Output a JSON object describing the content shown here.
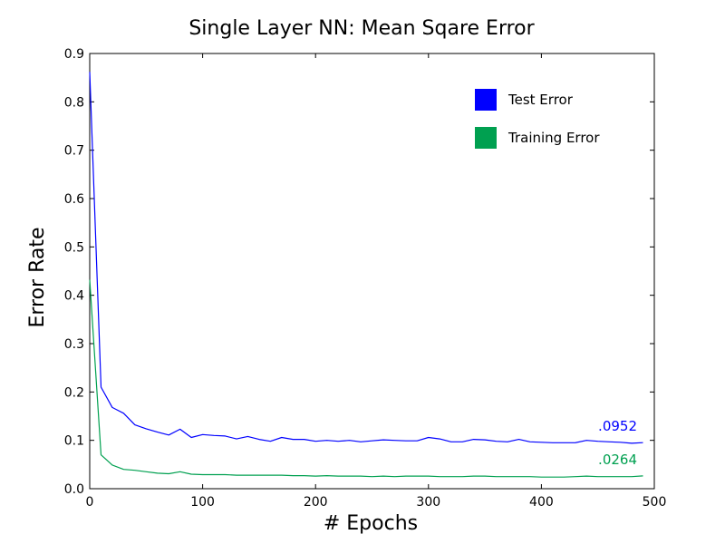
{
  "chart_data": {
    "type": "line",
    "title": "Single Layer NN: Mean Sqare Error",
    "xlabel": "# Epochs",
    "ylabel": "Error Rate",
    "xlim": [
      0,
      500
    ],
    "ylim": [
      0,
      0.9
    ],
    "xticks": [
      "0",
      "100",
      "200",
      "300",
      "400",
      "500"
    ],
    "yticks": [
      "0.0",
      "0.1",
      "0.2",
      "0.3",
      "0.4",
      "0.5",
      "0.6",
      "0.7",
      "0.8",
      "0.9"
    ],
    "grid": false,
    "legend_position": "top-right",
    "series": [
      {
        "name": "Test Error",
        "color": "#0000ff",
        "x": [
          0,
          10,
          20,
          30,
          40,
          50,
          60,
          70,
          80,
          90,
          100,
          110,
          120,
          130,
          140,
          150,
          160,
          170,
          180,
          190,
          200,
          210,
          220,
          230,
          240,
          250,
          260,
          270,
          280,
          290,
          300,
          310,
          320,
          330,
          340,
          350,
          360,
          370,
          380,
          390,
          400,
          410,
          420,
          430,
          440,
          450,
          460,
          470,
          480,
          490
        ],
        "values": [
          0.862,
          0.21,
          0.168,
          0.156,
          0.132,
          0.124,
          0.117,
          0.111,
          0.123,
          0.106,
          0.112,
          0.11,
          0.109,
          0.103,
          0.108,
          0.102,
          0.098,
          0.106,
          0.102,
          0.102,
          0.098,
          0.1,
          0.098,
          0.1,
          0.097,
          0.099,
          0.101,
          0.1,
          0.099,
          0.099,
          0.106,
          0.103,
          0.097,
          0.097,
          0.102,
          0.101,
          0.098,
          0.097,
          0.102,
          0.097,
          0.096,
          0.095,
          0.095,
          0.095,
          0.1,
          0.098,
          0.097,
          0.096,
          0.094,
          0.0952
        ]
      },
      {
        "name": "Training Error",
        "color": "#00a050",
        "x": [
          0,
          10,
          20,
          30,
          40,
          50,
          60,
          70,
          80,
          90,
          100,
          110,
          120,
          130,
          140,
          150,
          160,
          170,
          180,
          190,
          200,
          210,
          220,
          230,
          240,
          250,
          260,
          270,
          280,
          290,
          300,
          310,
          320,
          330,
          340,
          350,
          360,
          370,
          380,
          390,
          400,
          410,
          420,
          430,
          440,
          450,
          460,
          470,
          480,
          490
        ],
        "values": [
          0.432,
          0.07,
          0.049,
          0.04,
          0.038,
          0.035,
          0.032,
          0.031,
          0.035,
          0.03,
          0.029,
          0.029,
          0.029,
          0.028,
          0.028,
          0.028,
          0.028,
          0.028,
          0.027,
          0.027,
          0.026,
          0.027,
          0.026,
          0.026,
          0.026,
          0.025,
          0.026,
          0.025,
          0.026,
          0.026,
          0.026,
          0.025,
          0.025,
          0.025,
          0.026,
          0.026,
          0.025,
          0.025,
          0.025,
          0.025,
          0.024,
          0.024,
          0.024,
          0.025,
          0.026,
          0.025,
          0.025,
          0.025,
          0.025,
          0.0264
        ]
      }
    ],
    "annotations": [
      {
        "text": ".0952",
        "x": 490,
        "y": 0.0952,
        "color": "#0000ff"
      },
      {
        "text": ".0264",
        "x": 490,
        "y": 0.0264,
        "color": "#00a050"
      }
    ]
  }
}
